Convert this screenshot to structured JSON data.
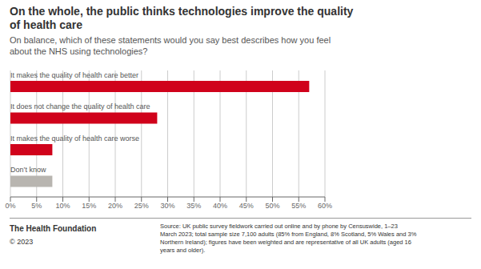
{
  "chart_data": {
    "type": "bar",
    "orientation": "horizontal",
    "title": "On the whole, the public thinks technologies improve the quality\nof health care",
    "subtitle": "On balance, which of these statements would you say best describes how you feel\nabout the NHS using technologies?",
    "categories": [
      "It makes the quality of health care better",
      "It does not change the quality of health care",
      "It makes the quality of health care worse",
      "Don’t know"
    ],
    "values": [
      57,
      28,
      8,
      8
    ],
    "colors": [
      "#d0021b",
      "#d0021b",
      "#d0021b",
      "#b8b5b0"
    ],
    "xlim": [
      0,
      60
    ],
    "xticks": [
      {
        "value": 0,
        "label": "0%"
      },
      {
        "value": 5,
        "label": "5%"
      },
      {
        "value": 10,
        "label": "10%"
      },
      {
        "value": 15,
        "label": "15%"
      },
      {
        "value": 20,
        "label": "20%"
      },
      {
        "value": 25,
        "label": "25%"
      },
      {
        "value": 30,
        "label": "30%"
      },
      {
        "value": 35,
        "label": "35%"
      },
      {
        "value": 40,
        "label": "40%"
      },
      {
        "value": 45,
        "label": "45%"
      },
      {
        "value": 50,
        "label": "50%"
      },
      {
        "value": 55,
        "label": "55%"
      },
      {
        "value": 60,
        "label": "60%"
      }
    ],
    "grid": true,
    "annotations": [
      "The Health Foundation",
      "© 2023",
      "Source: UK public survey fieldwork carried out online and by phone by Censuswide, 1–23\nMarch 2023; total sample size 7,100 adults (85% from England, 8% Scotland, 5% Wales and 3%\nNorthern Ireland); figures have been weighted and are representative of all UK adults (aged 16\nyears and older)."
    ]
  }
}
